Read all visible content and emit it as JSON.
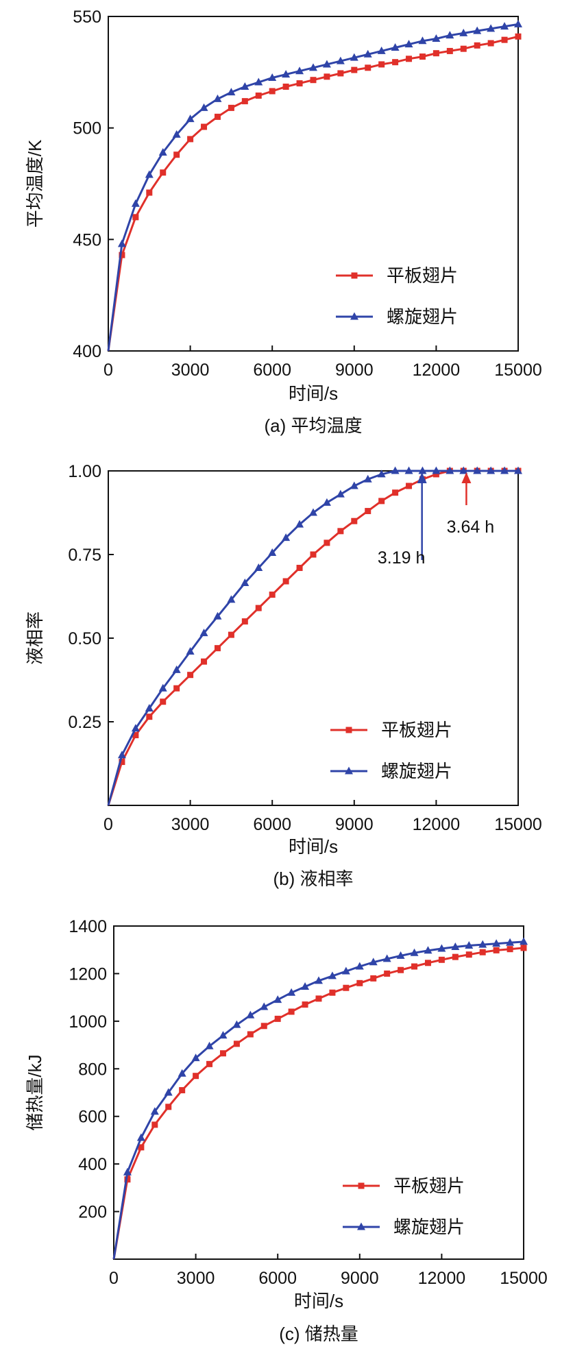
{
  "colors": {
    "flat": "#e0302a",
    "spiral": "#2f44a8",
    "axis": "#111111"
  },
  "legend_labels": {
    "flat": "平板翅片",
    "spiral": "螺旋翅片"
  },
  "chart_data": [
    {
      "type": "line",
      "caption": "(a) 平均温度",
      "xlabel": "时间/s",
      "ylabel": "平均温度/K",
      "xlim": [
        0,
        15000
      ],
      "ylim": [
        400,
        550
      ],
      "xticks": [
        0,
        3000,
        6000,
        9000,
        12000,
        15000
      ],
      "yticks": [
        400,
        450,
        500,
        550
      ],
      "ytick_labels": [
        "400",
        "450",
        "500",
        "550"
      ],
      "legend_position": "bottom-right",
      "series": [
        {
          "name": "平板翅片",
          "marker": "square",
          "x": [
            0,
            500,
            1000,
            1500,
            2000,
            2500,
            3000,
            3500,
            4000,
            4500,
            5000,
            5500,
            6000,
            6500,
            7000,
            7500,
            8000,
            8500,
            9000,
            9500,
            10000,
            10500,
            11000,
            11500,
            12000,
            12500,
            13000,
            13500,
            14000,
            14500,
            15000
          ],
          "y": [
            400,
            443,
            460,
            471,
            480,
            488,
            495,
            500.5,
            505,
            509,
            512,
            514.5,
            516.5,
            518.5,
            520,
            521.5,
            523,
            524.5,
            526,
            527,
            528.5,
            529.5,
            531,
            532,
            533.5,
            534.5,
            535.5,
            537,
            538,
            539.5,
            541
          ]
        },
        {
          "name": "螺旋翅片",
          "marker": "triangle",
          "x": [
            0,
            500,
            1000,
            1500,
            2000,
            2500,
            3000,
            3500,
            4000,
            4500,
            5000,
            5500,
            6000,
            6500,
            7000,
            7500,
            8000,
            8500,
            9000,
            9500,
            10000,
            10500,
            11000,
            11500,
            12000,
            12500,
            13000,
            13500,
            14000,
            14500,
            15000
          ],
          "y": [
            400,
            448,
            466,
            479,
            489,
            497,
            504,
            509,
            513,
            516,
            518.5,
            520.5,
            522.5,
            524,
            525.5,
            527,
            528.5,
            530,
            531.5,
            533,
            534.5,
            536,
            537.5,
            539,
            540,
            541.5,
            542.5,
            543.5,
            544.5,
            545.5,
            546.5
          ]
        }
      ]
    },
    {
      "type": "line",
      "caption": "(b) 液相率",
      "xlabel": "时间/s",
      "ylabel": "液相率",
      "xlim": [
        0,
        15000
      ],
      "ylim": [
        0,
        1
      ],
      "xticks": [
        0,
        3000,
        6000,
        9000,
        12000,
        15000
      ],
      "yticks": [
        0.25,
        0.5,
        0.75,
        1.0
      ],
      "ytick_labels": [
        "0.25",
        "0.50",
        "0.75",
        "1.00"
      ],
      "legend_position": "bottom-right",
      "annotations": [
        {
          "text": "3.19 h",
          "x": 11480,
          "series": "螺旋翅片"
        },
        {
          "text": "3.64 h",
          "x": 13104,
          "series": "平板翅片"
        }
      ],
      "series": [
        {
          "name": "平板翅片",
          "marker": "square",
          "x": [
            0,
            500,
            1000,
            1500,
            2000,
            2500,
            3000,
            3500,
            4000,
            4500,
            5000,
            5500,
            6000,
            6500,
            7000,
            7500,
            8000,
            8500,
            9000,
            9500,
            10000,
            10500,
            11000,
            11500,
            12000,
            12500,
            13000,
            13500,
            14000,
            14500,
            15000
          ],
          "y": [
            0,
            0.13,
            0.21,
            0.265,
            0.31,
            0.35,
            0.39,
            0.43,
            0.47,
            0.51,
            0.55,
            0.59,
            0.63,
            0.67,
            0.71,
            0.75,
            0.785,
            0.82,
            0.85,
            0.88,
            0.91,
            0.935,
            0.955,
            0.975,
            0.99,
            1.0,
            1.0,
            1.0,
            1.0,
            1.0,
            1.0
          ]
        },
        {
          "name": "螺旋翅片",
          "marker": "triangle",
          "x": [
            0,
            500,
            1000,
            1500,
            2000,
            2500,
            3000,
            3500,
            4000,
            4500,
            5000,
            5500,
            6000,
            6500,
            7000,
            7500,
            8000,
            8500,
            9000,
            9500,
            10000,
            10500,
            11000,
            11500,
            12000,
            12500,
            13000,
            13500,
            14000,
            14500,
            15000
          ],
          "y": [
            0,
            0.15,
            0.23,
            0.29,
            0.35,
            0.405,
            0.46,
            0.515,
            0.565,
            0.615,
            0.665,
            0.71,
            0.755,
            0.8,
            0.84,
            0.875,
            0.905,
            0.93,
            0.955,
            0.975,
            0.99,
            1.0,
            1.0,
            1.0,
            1.0,
            1.0,
            1.0,
            1.0,
            1.0,
            1.0,
            1.0
          ]
        }
      ]
    },
    {
      "type": "line",
      "caption": "(c) 储热量",
      "xlabel": "时间/s",
      "ylabel": "储热量/kJ",
      "xlim": [
        0,
        15000
      ],
      "ylim": [
        0,
        1400
      ],
      "xticks": [
        0,
        3000,
        6000,
        9000,
        12000,
        15000
      ],
      "yticks": [
        200,
        400,
        600,
        800,
        1000,
        1200,
        1400
      ],
      "ytick_labels": [
        "200",
        "400",
        "600",
        "800",
        "1000",
        "1200",
        "1400"
      ],
      "legend_position": "bottom-right",
      "series": [
        {
          "name": "平板翅片",
          "marker": "square",
          "x": [
            0,
            500,
            1000,
            1500,
            2000,
            2500,
            3000,
            3500,
            4000,
            4500,
            5000,
            5500,
            6000,
            6500,
            7000,
            7500,
            8000,
            8500,
            9000,
            9500,
            10000,
            10500,
            11000,
            11500,
            12000,
            12500,
            13000,
            13500,
            14000,
            14500,
            15000
          ],
          "y": [
            0,
            335,
            470,
            565,
            640,
            710,
            770,
            820,
            865,
            905,
            945,
            980,
            1010,
            1040,
            1070,
            1095,
            1120,
            1140,
            1160,
            1180,
            1200,
            1215,
            1230,
            1245,
            1258,
            1270,
            1280,
            1290,
            1298,
            1303,
            1308
          ]
        },
        {
          "name": "螺旋翅片",
          "marker": "triangle",
          "x": [
            0,
            500,
            1000,
            1500,
            2000,
            2500,
            3000,
            3500,
            4000,
            4500,
            5000,
            5500,
            6000,
            6500,
            7000,
            7500,
            8000,
            8500,
            9000,
            9500,
            10000,
            10500,
            11000,
            11500,
            12000,
            12500,
            13000,
            13500,
            14000,
            14500,
            15000
          ],
          "y": [
            0,
            365,
            510,
            620,
            700,
            780,
            845,
            895,
            940,
            985,
            1025,
            1060,
            1090,
            1120,
            1145,
            1170,
            1190,
            1210,
            1230,
            1248,
            1262,
            1275,
            1287,
            1297,
            1305,
            1312,
            1318,
            1322,
            1326,
            1330,
            1334
          ]
        }
      ]
    }
  ]
}
